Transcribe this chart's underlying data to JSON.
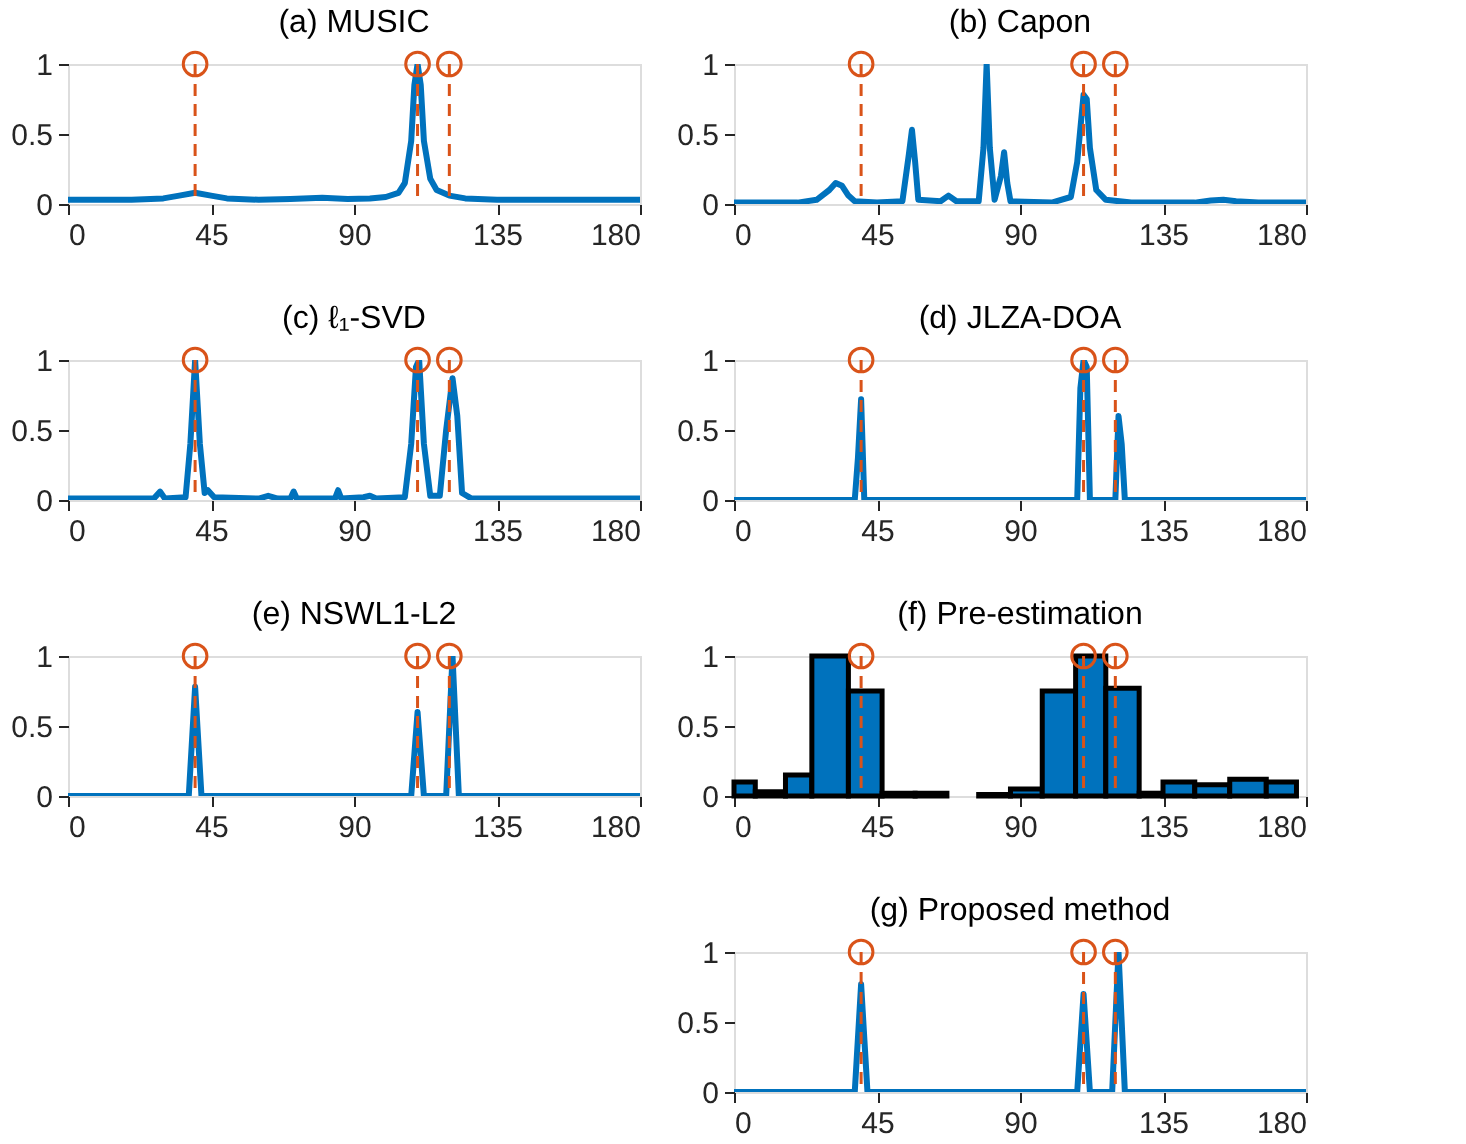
{
  "chart_data": [
    {
      "type": "line",
      "title": "(a) MUSIC",
      "xlim": [
        0,
        180
      ],
      "xticks": [
        0,
        45,
        90,
        135,
        180
      ],
      "ylim": [
        0,
        1
      ],
      "yticks": [
        0,
        0.5,
        1
      ],
      "series": [
        {
          "color": "#0072bd",
          "x": [
            0,
            20,
            30,
            35,
            40,
            45,
            50,
            60,
            70,
            80,
            88,
            95,
            100,
            104,
            106,
            108,
            109,
            110,
            111,
            112,
            114,
            116,
            120,
            125,
            135,
            180
          ],
          "values": [
            0.03,
            0.03,
            0.04,
            0.06,
            0.08,
            0.06,
            0.04,
            0.03,
            0.035,
            0.045,
            0.035,
            0.04,
            0.05,
            0.08,
            0.15,
            0.45,
            0.85,
            1.0,
            0.85,
            0.45,
            0.18,
            0.1,
            0.06,
            0.04,
            0.03,
            0.03
          ]
        },
        {
          "type": "lollipop",
          "color": "#d95319",
          "x": [
            40,
            110,
            120
          ],
          "values": [
            1,
            1,
            1
          ],
          "line_style": "dashed",
          "marker": "circle"
        }
      ]
    },
    {
      "type": "line",
      "title": "(b) Capon",
      "xlim": [
        0,
        180
      ],
      "xticks": [
        0,
        45,
        90,
        135,
        180
      ],
      "ylim": [
        0,
        1
      ],
      "yticks": [
        0,
        0.5,
        1
      ],
      "series": [
        {
          "color": "#0072bd",
          "x": [
            0,
            20,
            26,
            30,
            32,
            34,
            36,
            38,
            45,
            53,
            55,
            56,
            57,
            58,
            65,
            67.5,
            70,
            77,
            78.5,
            79.5,
            80.5,
            82,
            84,
            85,
            86,
            87,
            100,
            106,
            108,
            110,
            111,
            112,
            114,
            117,
            125,
            145,
            150,
            154,
            158,
            165,
            180
          ],
          "values": [
            0.01,
            0.01,
            0.03,
            0.1,
            0.15,
            0.13,
            0.06,
            0.02,
            0.01,
            0.02,
            0.35,
            0.53,
            0.3,
            0.03,
            0.02,
            0.06,
            0.02,
            0.02,
            0.4,
            1.0,
            0.4,
            0.03,
            0.2,
            0.37,
            0.15,
            0.02,
            0.01,
            0.05,
            0.3,
            0.78,
            0.75,
            0.4,
            0.1,
            0.03,
            0.01,
            0.01,
            0.025,
            0.03,
            0.02,
            0.01,
            0.01
          ]
        },
        {
          "type": "lollipop",
          "color": "#d95319",
          "x": [
            40,
            110,
            120
          ],
          "values": [
            1,
            1,
            1
          ],
          "line_style": "dashed",
          "marker": "circle"
        }
      ]
    },
    {
      "type": "line",
      "title": "(c) ℓ₁-SVD",
      "xlim": [
        0,
        180
      ],
      "xticks": [
        0,
        45,
        90,
        135,
        180
      ],
      "ylim": [
        0,
        1
      ],
      "yticks": [
        0,
        0.5,
        1
      ],
      "series": [
        {
          "color": "#0072bd",
          "x": [
            0,
            27,
            29,
            30.5,
            37,
            38.5,
            40,
            41.5,
            43,
            44,
            46,
            60,
            63,
            66,
            70,
            71,
            72,
            84,
            85,
            86,
            93,
            95,
            97,
            106,
            108,
            109.5,
            110.5,
            112,
            114,
            117,
            119,
            121,
            122.5,
            124,
            127,
            150,
            180
          ],
          "values": [
            0.01,
            0.01,
            0.06,
            0.01,
            0.02,
            0.4,
            1.0,
            0.4,
            0.05,
            0.07,
            0.02,
            0.01,
            0.03,
            0.01,
            0.01,
            0.06,
            0.01,
            0.01,
            0.07,
            0.01,
            0.02,
            0.03,
            0.01,
            0.02,
            0.4,
            0.95,
            1.0,
            0.4,
            0.03,
            0.03,
            0.5,
            0.87,
            0.6,
            0.05,
            0.01,
            0.01,
            0.01
          ]
        },
        {
          "type": "lollipop",
          "color": "#d95319",
          "x": [
            40,
            110,
            120
          ],
          "values": [
            1,
            1,
            1
          ],
          "line_style": "dashed",
          "marker": "circle"
        }
      ]
    },
    {
      "type": "line",
      "title": "(d) JLZA-DOA",
      "xlim": [
        0,
        180
      ],
      "xticks": [
        0,
        45,
        90,
        135,
        180
      ],
      "ylim": [
        0,
        1
      ],
      "yticks": [
        0,
        0.5,
        1
      ],
      "series": [
        {
          "color": "#0072bd",
          "x": [
            0,
            38,
            39,
            40,
            41,
            108,
            109,
            110,
            111,
            112,
            120,
            121,
            122,
            123,
            180
          ],
          "values": [
            0,
            0,
            0.3,
            0.72,
            0,
            0,
            0.8,
            1.0,
            0.95,
            0,
            0,
            0.6,
            0.4,
            0,
            0
          ]
        },
        {
          "type": "lollipop",
          "color": "#d95319",
          "x": [
            40,
            110,
            120
          ],
          "values": [
            1,
            1,
            1
          ],
          "line_style": "dashed",
          "marker": "circle"
        }
      ]
    },
    {
      "type": "line",
      "title": "(e) NSWL1-L2",
      "xlim": [
        0,
        180
      ],
      "xticks": [
        0,
        45,
        90,
        135,
        180
      ],
      "ylim": [
        0,
        1
      ],
      "yticks": [
        0,
        0.5,
        1
      ],
      "series": [
        {
          "color": "#0072bd",
          "x": [
            0,
            38,
            40,
            42,
            108,
            110,
            112,
            119,
            121,
            123,
            180
          ],
          "values": [
            0,
            0,
            0.78,
            0,
            0,
            0.6,
            0,
            0,
            1.0,
            0,
            0
          ]
        },
        {
          "type": "lollipop",
          "color": "#d95319",
          "x": [
            40,
            110,
            120
          ],
          "values": [
            1,
            1,
            1
          ],
          "line_style": "dashed",
          "marker": "circle"
        }
      ]
    },
    {
      "type": "histogram",
      "title": "(f) Pre-estimation",
      "xlim": [
        0,
        180
      ],
      "xticks": [
        0,
        45,
        90,
        135,
        180
      ],
      "ylim": [
        0,
        1
      ],
      "yticks": [
        0,
        0.5,
        1
      ],
      "color": "#0072bd",
      "bins": [
        0,
        6.7,
        16.2,
        24.5,
        36,
        46.6,
        57,
        67,
        77,
        87,
        97,
        107.5,
        117,
        127.5,
        135,
        145,
        156,
        167.5,
        177
      ],
      "values": [
        0.1,
        0.03,
        0.15,
        1.0,
        0.75,
        0.02,
        0.02,
        null,
        0.01,
        0.05,
        0.75,
        1.0,
        0.77,
        0.02,
        0.1,
        0.08,
        0.12,
        0.1
      ],
      "series": [
        {
          "type": "lollipop",
          "color": "#d95319",
          "x": [
            40,
            110,
            120
          ],
          "values": [
            1,
            1,
            1
          ],
          "line_style": "dashed",
          "marker": "circle"
        }
      ]
    },
    {
      "type": "line",
      "title": "(g) Proposed method",
      "xlim": [
        0,
        180
      ],
      "xticks": [
        0,
        45,
        90,
        135,
        180
      ],
      "ylim": [
        0,
        1
      ],
      "yticks": [
        0,
        0.5,
        1
      ],
      "series": [
        {
          "color": "#0072bd",
          "x": [
            0,
            38,
            40,
            42,
            108,
            110,
            112,
            119,
            121,
            123,
            180
          ],
          "values": [
            0,
            0,
            0.77,
            0,
            0,
            0.7,
            0,
            0,
            1.0,
            0,
            0
          ]
        },
        {
          "type": "lollipop",
          "color": "#d95319",
          "x": [
            40,
            110,
            120
          ],
          "values": [
            1,
            1,
            1
          ],
          "line_style": "dashed",
          "marker": "circle"
        }
      ]
    }
  ]
}
